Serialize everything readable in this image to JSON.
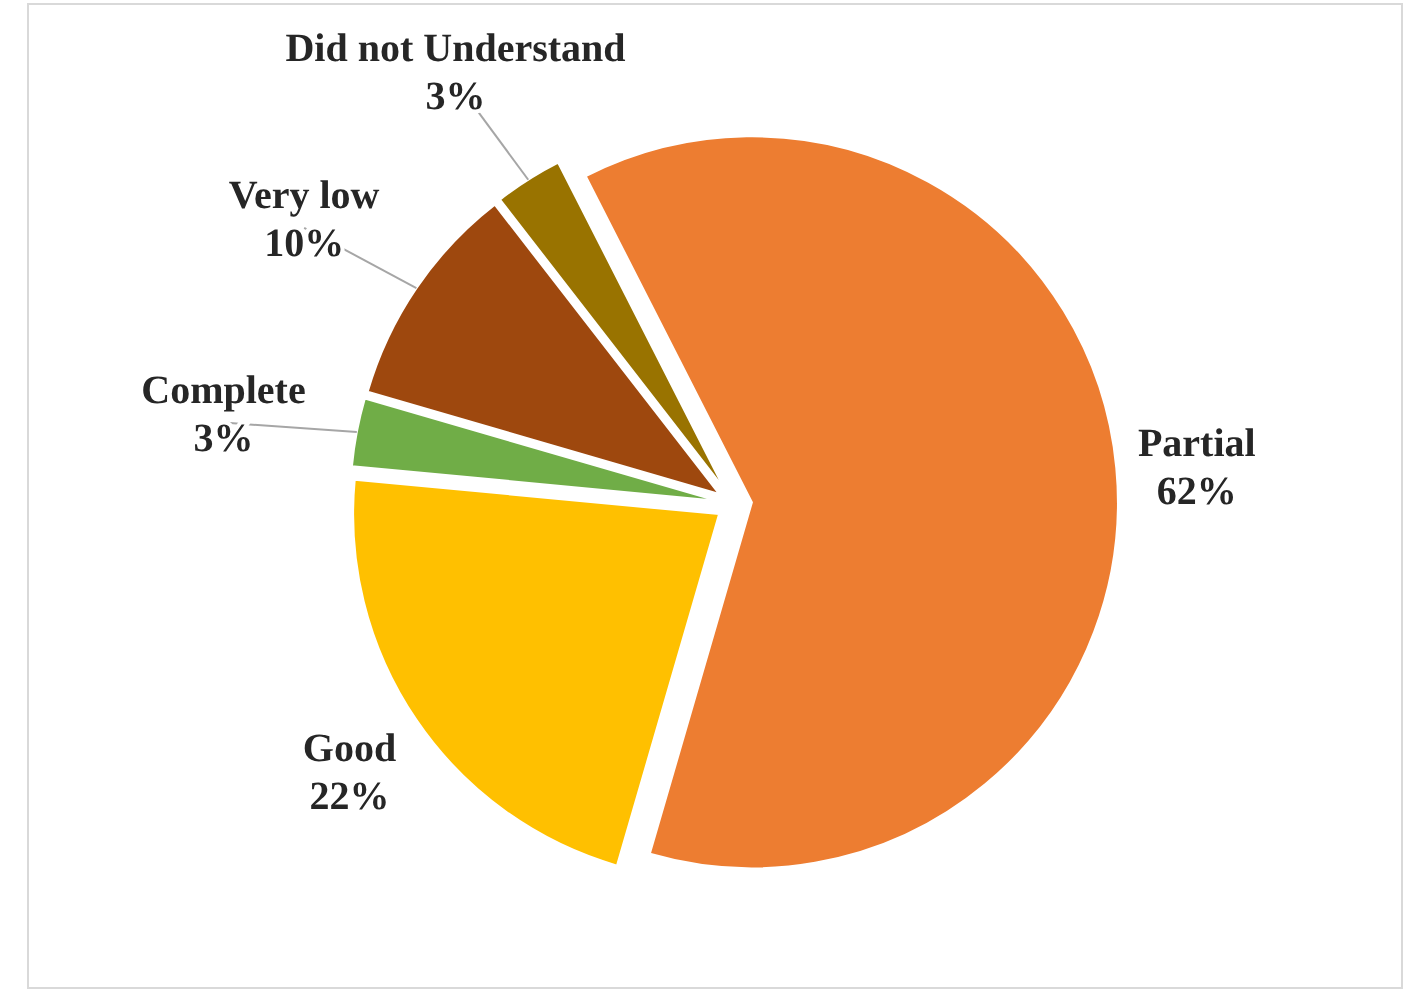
{
  "chart_data": {
    "type": "pie",
    "categories": [
      "Partial",
      "Good",
      "Complete",
      "Very low",
      "Did not Understand"
    ],
    "values": [
      62,
      22,
      3,
      10,
      3
    ],
    "colors": [
      "#ed7d31",
      "#ffc000",
      "#70ad47",
      "#9e480e",
      "#997300"
    ],
    "value_labels": [
      "62%",
      "22%",
      "3%",
      "10%",
      "3%"
    ]
  }
}
